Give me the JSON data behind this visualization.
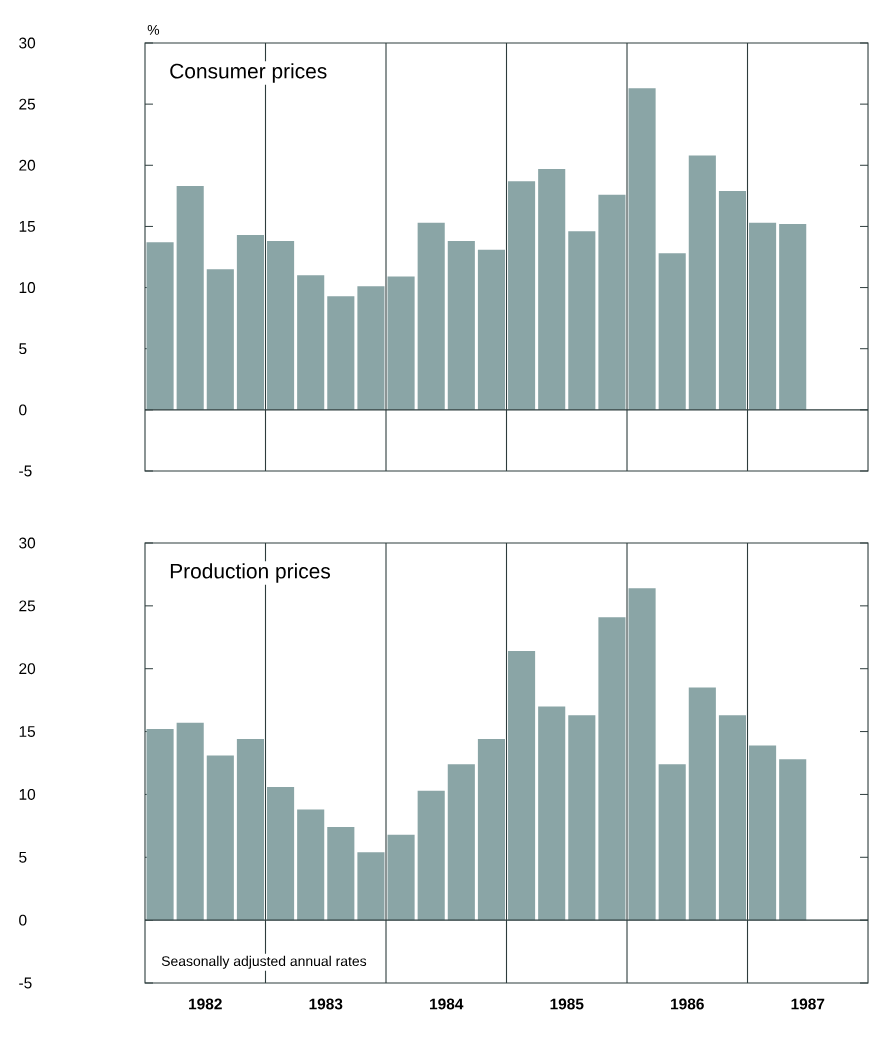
{
  "chart_data": [
    {
      "type": "bar",
      "title": "Consumer prices",
      "ylabel": "%",
      "color": "#8aa5a6",
      "x": [
        1982.125,
        1982.375,
        1982.625,
        1982.875,
        1983.125,
        1983.375,
        1983.625,
        1983.875,
        1984.125,
        1984.375,
        1984.625,
        1984.875,
        1985.125,
        1985.375,
        1985.625,
        1985.875,
        1986.125,
        1986.375,
        1986.625,
        1986.875,
        1987.125,
        1987.375
      ],
      "values": [
        13.7,
        18.3,
        11.5,
        14.3,
        13.8,
        11.0,
        9.3,
        10.1,
        10.9,
        15.3,
        13.8,
        13.1,
        18.7,
        19.7,
        14.6,
        17.6,
        26.3,
        12.8,
        20.8,
        17.9,
        15.3,
        15.2
      ],
      "xlim": [
        1982,
        1988
      ],
      "ylim": [
        -5,
        30
      ],
      "yticks": [
        -5,
        0,
        5,
        10,
        15,
        20,
        25,
        30
      ],
      "tick_labels": "y",
      "ref_lines": [
        {
          "axis": "y",
          "value": 0
        },
        {
          "axis": "x",
          "value": 1983
        },
        {
          "axis": "x",
          "value": 1984
        },
        {
          "axis": "x",
          "value": 1985
        },
        {
          "axis": "x",
          "value": 1986
        },
        {
          "axis": "x",
          "value": 1987
        }
      ]
    },
    {
      "type": "bar",
      "title": "Production prices",
      "color": "#8aa5a6",
      "x": [
        1982.125,
        1982.375,
        1982.625,
        1982.875,
        1983.125,
        1983.375,
        1983.625,
        1983.875,
        1984.125,
        1984.375,
        1984.625,
        1984.875,
        1985.125,
        1985.375,
        1985.625,
        1985.875,
        1986.125,
        1986.375,
        1986.625,
        1986.875,
        1987.125,
        1987.375
      ],
      "values": [
        15.2,
        15.7,
        13.1,
        14.4,
        10.6,
        8.8,
        7.4,
        5.4,
        6.8,
        10.3,
        12.4,
        14.4,
        21.4,
        17.0,
        16.3,
        24.1,
        26.4,
        12.4,
        18.5,
        16.3,
        13.9,
        12.8
      ],
      "xlim": [
        1982,
        1988
      ],
      "ylim": [
        -5,
        30
      ],
      "yticks": [
        -5,
        0,
        5,
        10,
        15,
        20,
        25,
        30
      ],
      "xticks": [
        {
          "value": 1982.5,
          "label": "1982"
        },
        {
          "value": 1983.5,
          "label": "1983"
        },
        {
          "value": 1984.5,
          "label": "1984"
        },
        {
          "value": 1985.5,
          "label": "1985"
        },
        {
          "value": 1986.5,
          "label": "1986"
        },
        {
          "value": 1987.5,
          "label": "1987"
        }
      ],
      "annotations": [
        "Seasonally adjusted annual rates"
      ],
      "ref_lines": [
        {
          "axis": "y",
          "value": 0
        },
        {
          "axis": "x",
          "value": 1983
        },
        {
          "axis": "x",
          "value": 1984
        },
        {
          "axis": "x",
          "value": 1985
        },
        {
          "axis": "x",
          "value": 1986
        },
        {
          "axis": "x",
          "value": 1987
        }
      ]
    }
  ]
}
